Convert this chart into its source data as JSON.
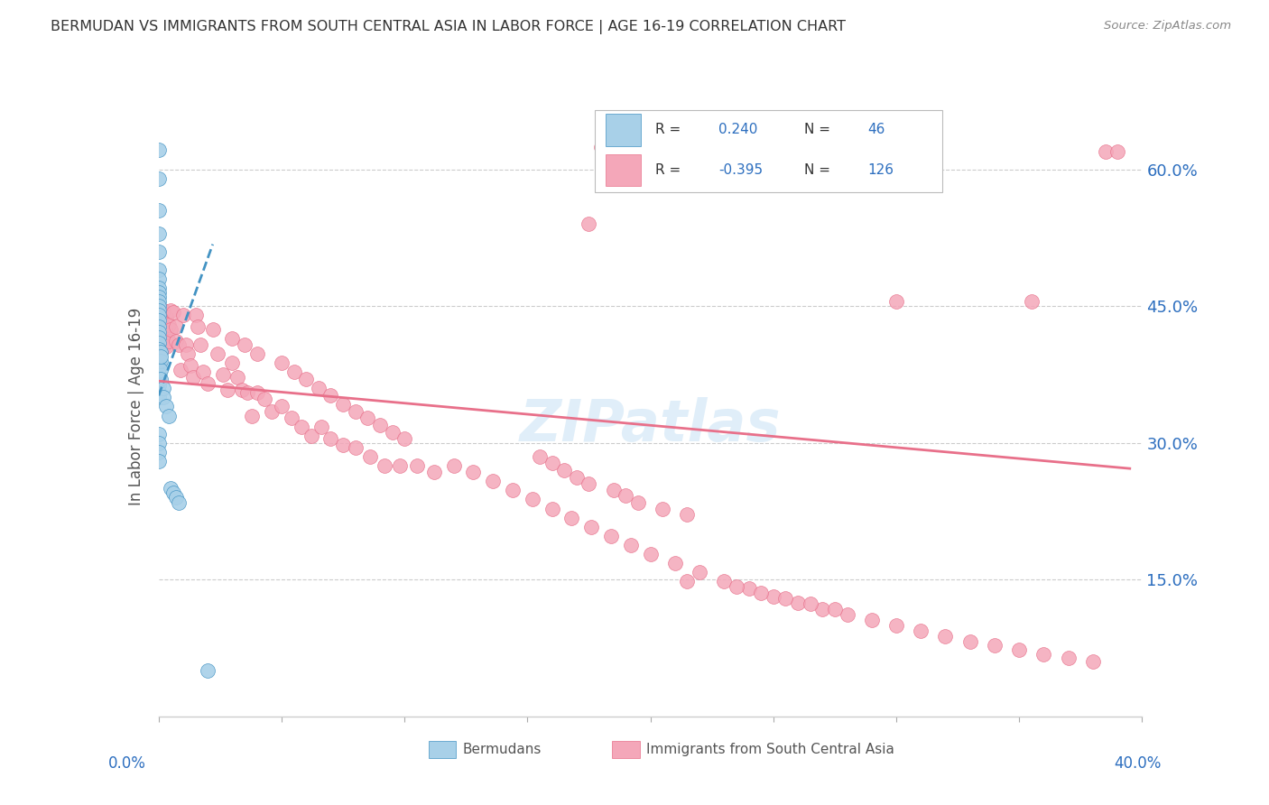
{
  "title": "BERMUDAN VS IMMIGRANTS FROM SOUTH CENTRAL ASIA IN LABOR FORCE | AGE 16-19 CORRELATION CHART",
  "source": "Source: ZipAtlas.com",
  "ylabel": "In Labor Force | Age 16-19",
  "ytick_labels": [
    "15.0%",
    "30.0%",
    "45.0%",
    "60.0%"
  ],
  "ytick_values": [
    0.15,
    0.3,
    0.45,
    0.6
  ],
  "xlim": [
    0.0,
    0.4
  ],
  "ylim": [
    0.0,
    0.68
  ],
  "R_blue": 0.24,
  "N_blue": 46,
  "R_pink": -0.395,
  "N_pink": 126,
  "legend_label_blue": "Bermudans",
  "legend_label_pink": "Immigrants from South Central Asia",
  "color_blue": "#A8D0E8",
  "color_blue_line": "#4393C3",
  "color_pink": "#F4A7B9",
  "color_pink_line": "#E8708A",
  "color_text_blue": "#2C6EBF",
  "color_grid": "#cccccc",
  "watermark": "ZIPatlas",
  "blue_x": [
    0.0,
    0.0,
    0.0,
    0.0,
    0.0,
    0.0,
    0.0,
    0.0,
    0.0,
    0.0,
    0.0,
    0.0,
    0.0,
    0.0,
    0.0,
    0.0,
    0.0,
    0.0,
    0.0,
    0.0,
    0.0,
    0.0,
    0.0,
    0.0,
    0.0,
    0.0,
    0.0,
    0.0,
    0.001,
    0.001,
    0.001,
    0.001,
    0.002,
    0.002,
    0.003,
    0.004,
    0.005,
    0.006,
    0.007,
    0.008,
    0.0,
    0.0,
    0.0,
    0.0,
    0.001,
    0.02
  ],
  "blue_y": [
    0.622,
    0.59,
    0.555,
    0.53,
    0.51,
    0.49,
    0.48,
    0.47,
    0.465,
    0.46,
    0.455,
    0.45,
    0.445,
    0.44,
    0.435,
    0.428,
    0.422,
    0.416,
    0.41,
    0.403,
    0.396,
    0.389,
    0.382,
    0.376,
    0.37,
    0.363,
    0.356,
    0.35,
    0.4,
    0.39,
    0.38,
    0.37,
    0.36,
    0.35,
    0.34,
    0.33,
    0.25,
    0.245,
    0.24,
    0.235,
    0.31,
    0.3,
    0.29,
    0.28,
    0.395,
    0.05
  ],
  "pink_x": [
    0.0,
    0.0,
    0.0,
    0.0,
    0.0,
    0.0,
    0.0,
    0.001,
    0.001,
    0.001,
    0.001,
    0.002,
    0.002,
    0.002,
    0.003,
    0.003,
    0.003,
    0.004,
    0.004,
    0.005,
    0.005,
    0.006,
    0.007,
    0.007,
    0.008,
    0.009,
    0.01,
    0.011,
    0.012,
    0.013,
    0.014,
    0.015,
    0.016,
    0.017,
    0.018,
    0.02,
    0.022,
    0.024,
    0.026,
    0.028,
    0.03,
    0.032,
    0.034,
    0.036,
    0.038,
    0.04,
    0.043,
    0.046,
    0.05,
    0.054,
    0.058,
    0.062,
    0.066,
    0.07,
    0.075,
    0.08,
    0.086,
    0.092,
    0.098,
    0.105,
    0.112,
    0.12,
    0.128,
    0.136,
    0.144,
    0.152,
    0.16,
    0.168,
    0.176,
    0.184,
    0.192,
    0.2,
    0.21,
    0.22,
    0.23,
    0.24,
    0.25,
    0.26,
    0.27,
    0.28,
    0.29,
    0.3,
    0.31,
    0.32,
    0.33,
    0.34,
    0.35,
    0.36,
    0.37,
    0.38,
    0.385,
    0.39,
    0.18,
    0.175,
    0.3,
    0.355,
    0.03,
    0.035,
    0.04,
    0.05,
    0.055,
    0.06,
    0.065,
    0.07,
    0.075,
    0.08,
    0.085,
    0.09,
    0.095,
    0.1,
    0.155,
    0.16,
    0.165,
    0.17,
    0.175,
    0.185,
    0.19,
    0.195,
    0.205,
    0.215,
    0.215,
    0.235,
    0.245,
    0.255,
    0.265,
    0.275
  ],
  "pink_y": [
    0.428,
    0.422,
    0.415,
    0.408,
    0.4,
    0.393,
    0.386,
    0.435,
    0.425,
    0.415,
    0.406,
    0.445,
    0.425,
    0.406,
    0.438,
    0.422,
    0.406,
    0.43,
    0.412,
    0.445,
    0.425,
    0.443,
    0.428,
    0.412,
    0.408,
    0.38,
    0.44,
    0.408,
    0.398,
    0.385,
    0.372,
    0.44,
    0.428,
    0.408,
    0.378,
    0.365,
    0.425,
    0.398,
    0.375,
    0.358,
    0.388,
    0.372,
    0.358,
    0.355,
    0.33,
    0.355,
    0.348,
    0.335,
    0.34,
    0.328,
    0.318,
    0.308,
    0.318,
    0.305,
    0.298,
    0.295,
    0.285,
    0.275,
    0.275,
    0.275,
    0.268,
    0.275,
    0.268,
    0.258,
    0.248,
    0.238,
    0.228,
    0.218,
    0.208,
    0.198,
    0.188,
    0.178,
    0.168,
    0.158,
    0.148,
    0.14,
    0.132,
    0.125,
    0.118,
    0.112,
    0.106,
    0.1,
    0.094,
    0.088,
    0.082,
    0.078,
    0.073,
    0.068,
    0.064,
    0.06,
    0.62,
    0.62,
    0.625,
    0.54,
    0.455,
    0.455,
    0.415,
    0.408,
    0.398,
    0.388,
    0.378,
    0.37,
    0.36,
    0.352,
    0.342,
    0.335,
    0.328,
    0.32,
    0.312,
    0.305,
    0.285,
    0.278,
    0.27,
    0.262,
    0.255,
    0.248,
    0.242,
    0.235,
    0.228,
    0.222,
    0.148,
    0.142,
    0.136,
    0.13,
    0.124,
    0.118
  ],
  "blue_trend_x": [
    0.0,
    0.022
  ],
  "blue_trend_y": [
    0.352,
    0.518
  ],
  "pink_trend_x": [
    0.0,
    0.395
  ],
  "pink_trend_y": [
    0.368,
    0.272
  ]
}
